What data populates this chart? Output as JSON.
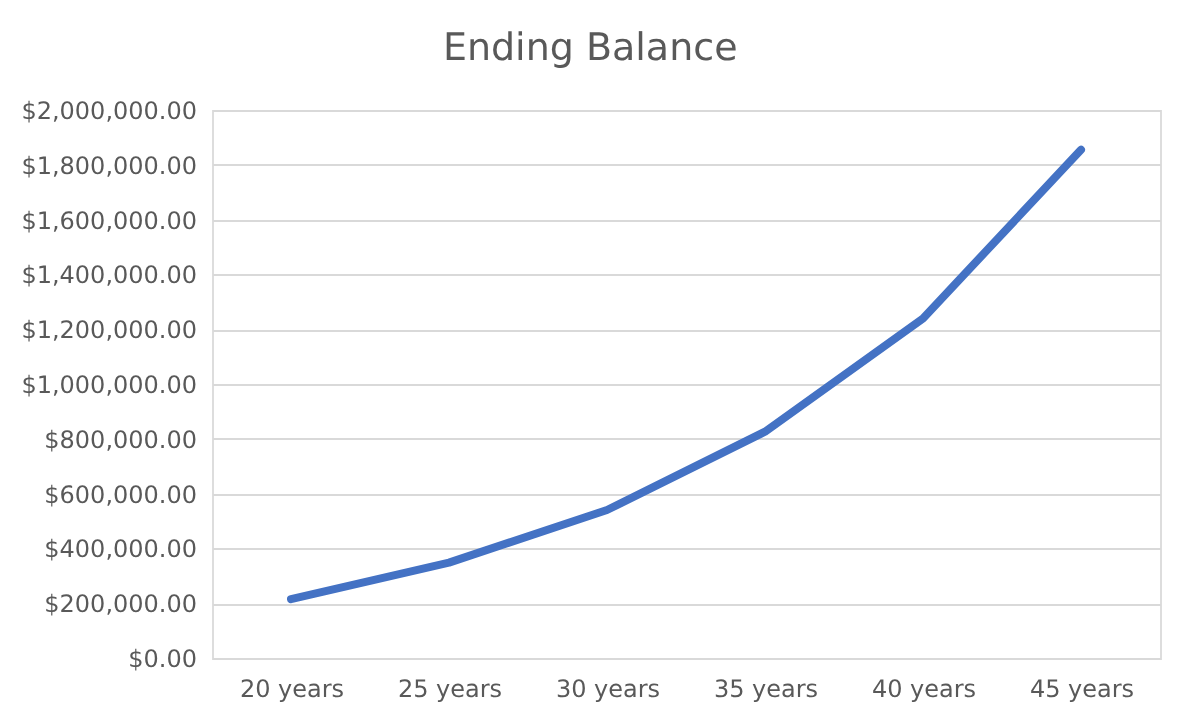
{
  "chart_data": {
    "type": "line",
    "title": "Ending Balance",
    "categories": [
      "20 years",
      "25 years",
      "30 years",
      "35 years",
      "40 years",
      "45 years"
    ],
    "series": [
      {
        "color": "#4472c4",
        "values": [
          215000,
          348000,
          540000,
          826000,
          1239000,
          1855000
        ]
      }
    ],
    "ylim": [
      0,
      2000000
    ],
    "yticks": [
      {
        "value": 0,
        "label": "$0.00"
      },
      {
        "value": 200000,
        "label": "$200,000.00"
      },
      {
        "value": 400000,
        "label": "$400,000.00"
      },
      {
        "value": 600000,
        "label": "$600,000.00"
      },
      {
        "value": 800000,
        "label": "$800,000.00"
      },
      {
        "value": 1000000,
        "label": "$1,000,000.00"
      },
      {
        "value": 1200000,
        "label": "$1,200,000.00"
      },
      {
        "value": 1400000,
        "label": "$1,400,000.00"
      },
      {
        "value": 1600000,
        "label": "$1,600,000.00"
      },
      {
        "value": 1800000,
        "label": "$1,800,000.00"
      },
      {
        "value": 2000000,
        "label": "$2,000,000.00"
      }
    ],
    "grid": "y",
    "marker": "none",
    "line_style": "solid"
  }
}
